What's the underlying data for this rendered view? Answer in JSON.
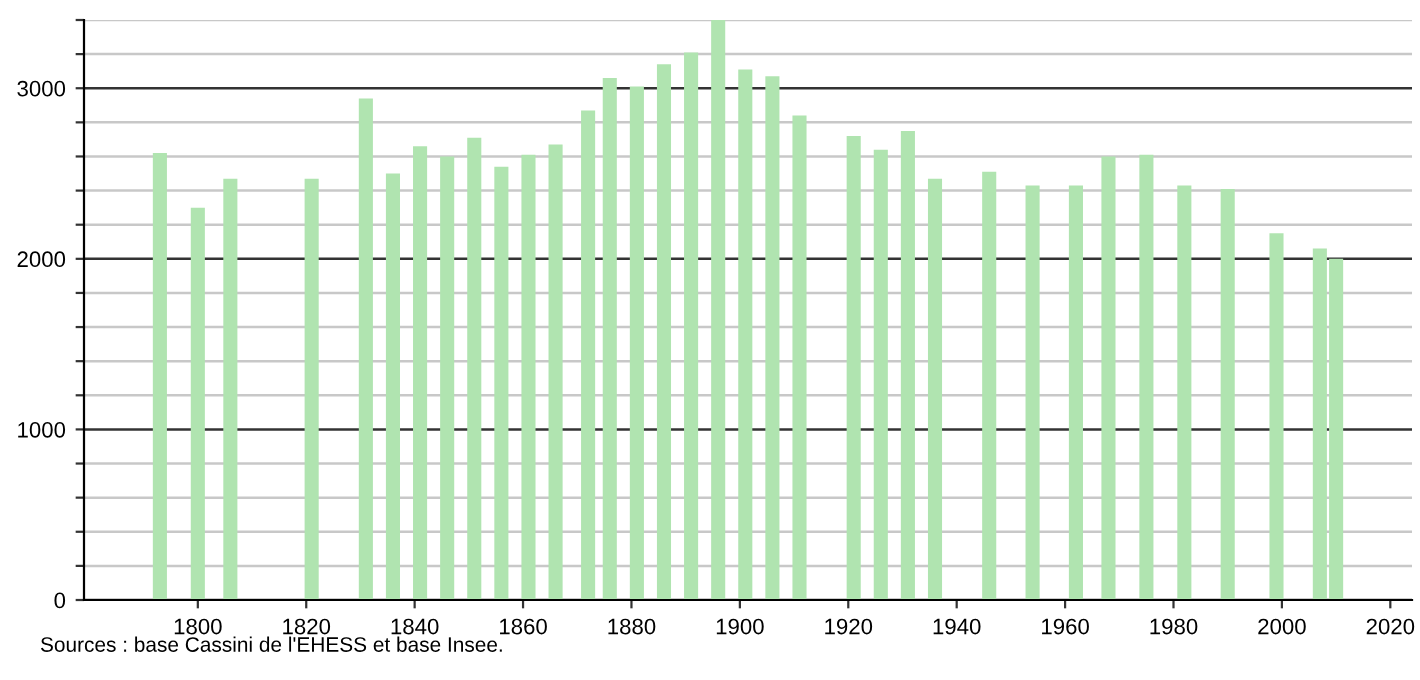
{
  "chart_data": {
    "type": "bar",
    "x": [
      1793,
      1800,
      1806,
      1821,
      1831,
      1836,
      1841,
      1846,
      1851,
      1856,
      1861,
      1866,
      1872,
      1876,
      1881,
      1886,
      1891,
      1896,
      1901,
      1906,
      1911,
      1921,
      1926,
      1931,
      1936,
      1946,
      1954,
      1962,
      1968,
      1975,
      1982,
      1990,
      1999,
      2007,
      2010
    ],
    "values": [
      2620,
      2300,
      2470,
      2470,
      2940,
      2500,
      2660,
      2600,
      2710,
      2540,
      2610,
      2670,
      2870,
      3060,
      3010,
      3140,
      3210,
      3400,
      3110,
      3070,
      2840,
      2720,
      2640,
      2750,
      2470,
      2510,
      2430,
      2430,
      2600,
      2610,
      2430,
      2410,
      2150,
      2060,
      2000
    ],
    "color": "#b0e4b0",
    "xlim": [
      1779,
      2024
    ],
    "xticks": [
      1800,
      1820,
      1840,
      1860,
      1880,
      1900,
      1920,
      1940,
      1960,
      1980,
      2000,
      2020
    ],
    "ylim": [
      0,
      3400
    ],
    "yticks": [
      0,
      {
        "value": 200,
        "label": null
      },
      {
        "value": 400,
        "label": null
      },
      {
        "value": 600,
        "label": null
      },
      {
        "value": 800,
        "label": null
      },
      1000,
      {
        "value": 1200,
        "label": null
      },
      {
        "value": 1400,
        "label": null
      },
      {
        "value": 1600,
        "label": null
      },
      {
        "value": 1800,
        "label": null
      },
      2000,
      {
        "value": 2200,
        "label": null
      },
      {
        "value": 2400,
        "label": null
      },
      {
        "value": 2600,
        "label": null
      },
      {
        "value": 2800,
        "label": null
      },
      3000,
      {
        "value": 3200,
        "label": null
      },
      {
        "value": 3400,
        "label": null
      }
    ],
    "grid": "y",
    "annotations": [
      "Sources : base Cassini de l'EHESS et base Insee."
    ]
  }
}
